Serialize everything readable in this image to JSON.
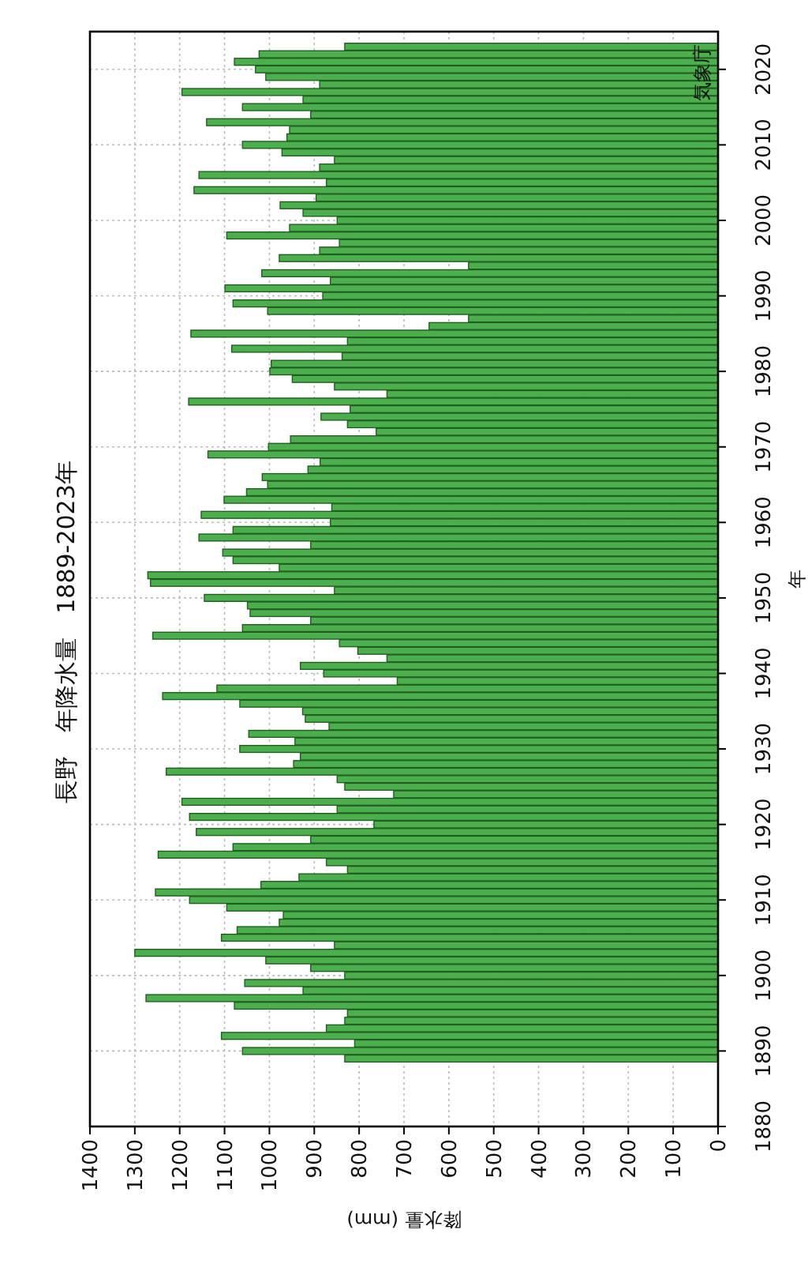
{
  "chart_data": {
    "type": "bar",
    "orientation": "horizontal",
    "title": "長野　年降水量　1889-2023年",
    "xlabel": "降水量 (mm)",
    "ylabel": "年",
    "x": [
      1889,
      1890,
      1891,
      1892,
      1893,
      1894,
      1895,
      1896,
      1897,
      1898,
      1899,
      1900,
      1901,
      1902,
      1903,
      1904,
      1905,
      1906,
      1907,
      1908,
      1909,
      1910,
      1911,
      1912,
      1913,
      1914,
      1915,
      1916,
      1917,
      1918,
      1919,
      1920,
      1921,
      1922,
      1923,
      1924,
      1925,
      1926,
      1927,
      1928,
      1929,
      1930,
      1931,
      1932,
      1933,
      1934,
      1935,
      1936,
      1937,
      1938,
      1939,
      1940,
      1941,
      1942,
      1943,
      1944,
      1945,
      1946,
      1947,
      1948,
      1949,
      1950,
      1951,
      1952,
      1953,
      1954,
      1955,
      1956,
      1957,
      1958,
      1959,
      1960,
      1961,
      1962,
      1963,
      1964,
      1965,
      1966,
      1967,
      1968,
      1969,
      1970,
      1971,
      1972,
      1973,
      1974,
      1975,
      1976,
      1977,
      1978,
      1979,
      1980,
      1981,
      1982,
      1983,
      1984,
      1985,
      1986,
      1987,
      1988,
      1989,
      1990,
      1991,
      1992,
      1993,
      1994,
      1995,
      1996,
      1997,
      1998,
      1999,
      2000,
      2001,
      2002,
      2003,
      2004,
      2005,
      2006,
      2007,
      2008,
      2009,
      2010,
      2011,
      2012,
      2013,
      2014,
      2015,
      2016,
      2017,
      2018,
      2019,
      2020,
      2021,
      2022,
      2023
    ],
    "values": [
      832,
      1060,
      810,
      1107,
      873,
      832,
      826,
      1078,
      1275,
      925,
      1055,
      832,
      908,
      1008,
      1300,
      855,
      1107,
      1072,
      978,
      969,
      1095,
      1178,
      1254,
      1019,
      934,
      826,
      873,
      1248,
      1081,
      908,
      1163,
      767,
      1178,
      849,
      1195,
      723,
      832,
      849,
      1230,
      946,
      931,
      1066,
      943,
      1046,
      867,
      920,
      926,
      1066,
      1238,
      1117,
      715,
      879,
      931,
      738,
      803,
      844,
      1260,
      1060,
      908,
      1043,
      1049,
      1145,
      855,
      1265,
      1271,
      978,
      1081,
      1104,
      908,
      1157,
      1081,
      864,
      1152,
      861,
      1101,
      1051,
      1004,
      1016,
      914,
      887,
      1137,
      1002,
      953,
      762,
      826,
      885,
      820,
      1180,
      738,
      855,
      949,
      999,
      996,
      838,
      1084,
      826,
      1175,
      644,
      556,
      1004,
      1081,
      881,
      1099,
      864,
      1017,
      556,
      978,
      888,
      844,
      1095,
      955,
      849,
      925,
      976,
      896,
      1168,
      873,
      1157,
      888,
      855,
      972,
      1060,
      961,
      955,
      1140,
      908,
      1060,
      925,
      1195,
      888,
      1008,
      1031,
      1078,
      1023,
      832
    ],
    "color": "#4cae4c",
    "xlim": [
      1400,
      0
    ],
    "ylim": [
      1880,
      2025
    ],
    "xticks": [
      1400,
      1300,
      1200,
      1100,
      1000,
      900,
      800,
      700,
      600,
      500,
      400,
      300,
      200,
      100,
      0
    ],
    "yticks": [
      1880,
      1890,
      1900,
      1910,
      1920,
      1930,
      1940,
      1950,
      1960,
      1970,
      1980,
      1990,
      2000,
      2010,
      2020
    ],
    "grid": true,
    "annotations": [
      "気象庁"
    ]
  }
}
